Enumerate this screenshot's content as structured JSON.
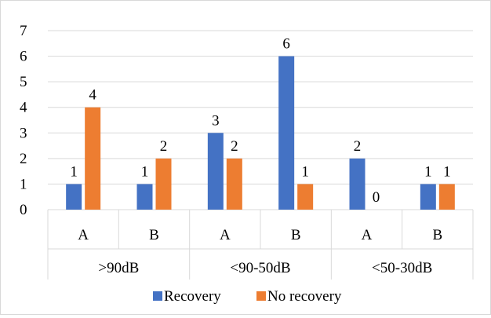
{
  "chart_data": {
    "type": "bar",
    "title": "",
    "xlabel": "",
    "ylabel": "",
    "ylim": [
      0,
      7
    ],
    "yticks": [
      0,
      1,
      2,
      3,
      4,
      5,
      6,
      7
    ],
    "grid": true,
    "legend_position": "bottom",
    "groups": [
      ">90dB",
      "<90-50dB",
      "<50-30dB"
    ],
    "categories": [
      "A",
      "B",
      "A",
      "B",
      "A",
      "B"
    ],
    "series": [
      {
        "name": "Recovery",
        "color": "#4472C4",
        "values": [
          1,
          1,
          3,
          6,
          2,
          1
        ]
      },
      {
        "name": "No recovery",
        "color": "#ED7D31",
        "values": [
          4,
          2,
          2,
          1,
          0,
          1
        ]
      }
    ]
  }
}
